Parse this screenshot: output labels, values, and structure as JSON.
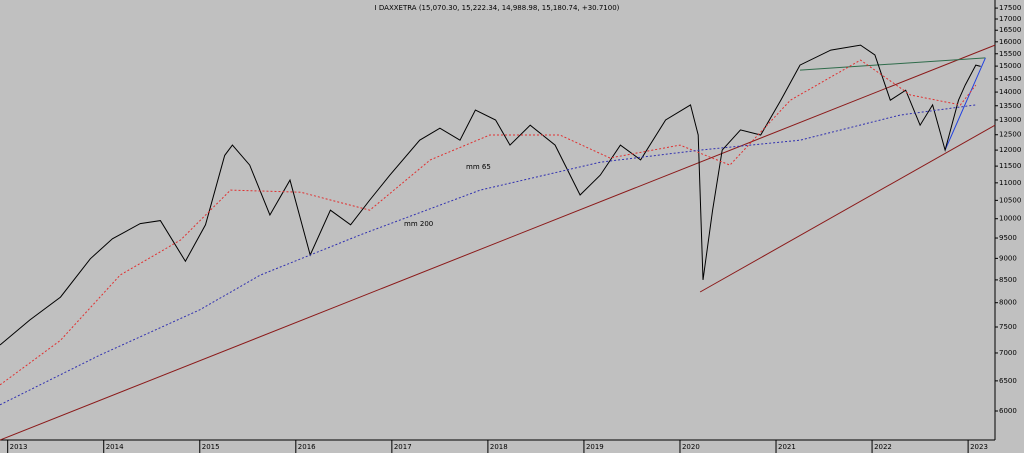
{
  "chart_data": {
    "type": "line",
    "title": "I DAXXETRA (15,070.30, 15,222.34, 14,988.98, 15,180.74, +30.7100)",
    "log_y": true,
    "xlim": [
      2012.92,
      2023.28
    ],
    "xticks": [
      2013,
      2014,
      2015,
      2016,
      2017,
      2018,
      2019,
      2020,
      2021,
      2022,
      2023
    ],
    "ylim": [
      5555,
      17880
    ],
    "yticks": [
      6000,
      6500,
      7000,
      7500,
      8000,
      8500,
      9000,
      9500,
      10000,
      10500,
      11000,
      11500,
      12000,
      12500,
      13000,
      13500,
      14000,
      14500,
      15000,
      15500,
      16000,
      16500,
      17000,
      17500
    ],
    "series": [
      {
        "color": "#000000",
        "x": [
          2012.92,
          2013.23,
          2013.55,
          2013.86,
          2014.09,
          2014.38,
          2014.59,
          2014.85,
          2015.06,
          2015.26,
          2015.34,
          2015.52,
          2015.73,
          2015.94,
          2016.15,
          2016.36,
          2016.57,
          2016.77,
          2016.98,
          2017.29,
          2017.5,
          2017.71,
          2017.87,
          2018.08,
          2018.23,
          2018.44,
          2018.7,
          2018.96,
          2019.17,
          2019.38,
          2019.59,
          2019.85,
          2020.11,
          2020.19,
          2020.24,
          2020.34,
          2020.44,
          2020.63,
          2020.84,
          2021.05,
          2021.25,
          2021.57,
          2021.88,
          2022.03,
          2022.19,
          2022.35,
          2022.5,
          2022.63,
          2022.76,
          2022.9,
          2022.97,
          2023.08,
          2023.13
        ],
        "values": [
          7150,
          7640,
          8120,
          8990,
          9480,
          9870,
          9950,
          8930,
          9840,
          11832,
          12160,
          11530,
          10100,
          11080,
          9080,
          10230,
          9840,
          10510,
          11230,
          12320,
          12720,
          12320,
          13350,
          13000,
          12160,
          12820,
          12160,
          10650,
          11230,
          12160,
          11690,
          13000,
          13530,
          12490,
          8500,
          10230,
          12000,
          12660,
          12490,
          13700,
          15040,
          15650,
          15860,
          15450,
          13700,
          14070,
          12820,
          13530,
          12000,
          13700,
          14260,
          15040,
          14990
        ]
      },
      {
        "name": "mm 65",
        "color": "#e03030",
        "dashed": true,
        "x": [
          2012.92,
          2013.55,
          2014.17,
          2014.8,
          2015.32,
          2016.05,
          2016.77,
          2017.4,
          2018.02,
          2018.75,
          2019.27,
          2020.0,
          2020.52,
          2021.15,
          2021.88,
          2022.4,
          2022.92,
          2023.08
        ],
        "values": [
          6430,
          7240,
          8610,
          9450,
          10790,
          10730,
          10230,
          11690,
          12490,
          12490,
          11750,
          12160,
          11530,
          13700,
          15240,
          13890,
          13530,
          14260
        ]
      },
      {
        "name": "mm 200",
        "color": "#3030b0",
        "dashed": true,
        "x": [
          2012.92,
          2013.96,
          2015.0,
          2015.63,
          2016.67,
          2017.92,
          2019.17,
          2020.21,
          2021.25,
          2022.29,
          2023.08
        ],
        "values": [
          6100,
          6960,
          7850,
          8610,
          9580,
          10790,
          11620,
          12000,
          12320,
          13170,
          13530
        ]
      }
    ],
    "trendlines": [
      {
        "color": "#8b1a1a",
        "x": [
          2012.92,
          2023.28
        ],
        "values": [
          5555,
          15860
        ]
      },
      {
        "color": "#8b1a1a",
        "x": [
          2020.21,
          2023.28
        ],
        "values": [
          8230,
          12820
        ]
      },
      {
        "color": "#2e6b4a",
        "x": [
          2021.25,
          2023.18
        ],
        "values": [
          14840,
          15330
        ]
      },
      {
        "color": "#2040e0",
        "x": [
          2022.76,
          2023.18
        ],
        "values": [
          12000,
          15330
        ]
      }
    ]
  }
}
